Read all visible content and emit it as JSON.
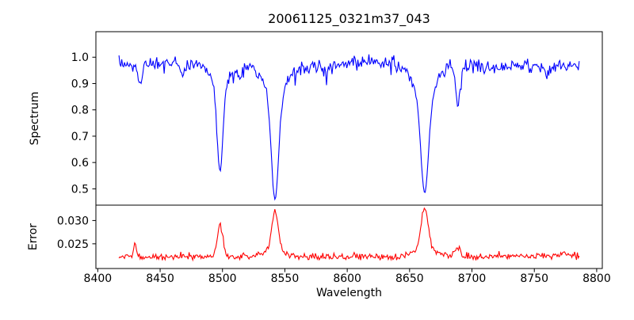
{
  "chart_data": {
    "type": "line",
    "title": "20061125_0321m37_043",
    "xlabel": "Wavelength",
    "xlim": [
      8398.5,
      8804.5
    ],
    "xticks": [
      8400,
      8450,
      8500,
      8550,
      8600,
      8650,
      8700,
      8750,
      8800
    ],
    "wavelength_range": [
      8417,
      8786
    ],
    "n_points": 500,
    "seed": 7,
    "grid": false,
    "legend": "none",
    "background_color": "#ffffff",
    "frame_color": "#000000",
    "panels": [
      {
        "name": "spectrum",
        "ylabel": "Spectrum",
        "color": "#0000ff",
        "ylim": [
          0.438,
          1.097
        ],
        "yticks": [
          0.5,
          0.6,
          0.7,
          0.8,
          0.9,
          1.0
        ],
        "ytick_decimals": 1,
        "continuum": 0.972,
        "noise_sigma": 0.012,
        "absorption_lines": [
          {
            "center": 8434.0,
            "depth": 0.07,
            "sigma": 1.8
          },
          {
            "center": 8468.0,
            "depth": 0.05,
            "sigma": 1.8
          },
          {
            "center": 8498.0,
            "depth": 0.3,
            "sigma": 2.2
          },
          {
            "center": 8498.0,
            "depth": 0.1,
            "sigma": 6.0
          },
          {
            "center": 8514.0,
            "depth": 0.05,
            "sigma": 1.5
          },
          {
            "center": 8542.1,
            "depth": 0.38,
            "sigma": 2.8
          },
          {
            "center": 8542.1,
            "depth": 0.13,
            "sigma": 8.0
          },
          {
            "center": 8583.0,
            "depth": 0.04,
            "sigma": 1.5
          },
          {
            "center": 8662.1,
            "depth": 0.36,
            "sigma": 3.0
          },
          {
            "center": 8662.1,
            "depth": 0.13,
            "sigma": 9.0
          },
          {
            "center": 8688.6,
            "depth": 0.155,
            "sigma": 1.8
          },
          {
            "center": 8760.0,
            "depth": 0.045,
            "sigma": 1.8
          }
        ]
      },
      {
        "name": "error",
        "ylabel": "Error",
        "color": "#ff0000",
        "ylim": [
          0.0197,
          0.0333
        ],
        "yticks": [
          0.025,
          0.03
        ],
        "ytick_decimals": 3,
        "baseline": 0.0222,
        "noise_sigma": 0.00032,
        "peaks": [
          {
            "center": 8430.0,
            "height": 0.0026,
            "sigma": 1.0
          },
          {
            "center": 8498.0,
            "height": 0.0066,
            "sigma": 2.2
          },
          {
            "center": 8542.1,
            "height": 0.0082,
            "sigma": 2.6
          },
          {
            "center": 8542.1,
            "height": 0.0014,
            "sigma": 8.0
          },
          {
            "center": 8662.1,
            "height": 0.0086,
            "sigma": 2.8
          },
          {
            "center": 8662.1,
            "height": 0.0018,
            "sigma": 9.0
          },
          {
            "center": 8688.6,
            "height": 0.002,
            "sigma": 2.0
          }
        ]
      }
    ]
  }
}
